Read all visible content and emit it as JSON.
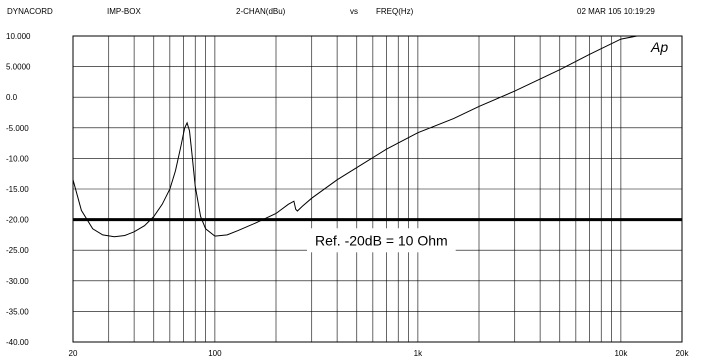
{
  "header": {
    "brand": "DYNACORD",
    "device": "IMP-BOX",
    "channel": "2-CHAN(dBu)",
    "vs": "vs",
    "freq": "FREQ(Hz)",
    "timestamp": "02 MAR 105 10:19:29"
  },
  "chart_data": {
    "type": "line",
    "xscale": "log",
    "xlim": [
      20,
      20000
    ],
    "ylim": [
      -40,
      10
    ],
    "grid": true,
    "ytick_labels": [
      "10.000",
      "5.0000",
      "0.0",
      "-5.000",
      "-10.00",
      "-15.00",
      "-20.00",
      "-25.00",
      "-30.00",
      "-35.00",
      "-40.00"
    ],
    "ytick_values": [
      10,
      5,
      0,
      -5,
      -10,
      -15,
      -20,
      -25,
      -30,
      -35,
      -40
    ],
    "xtick_labels": [
      "20",
      "100",
      "1k",
      "10k",
      "20k"
    ],
    "xtick_values": [
      20,
      100,
      1000,
      10000,
      20000
    ],
    "corner_label": "Ap",
    "reference_line": {
      "y": -20,
      "label": "Ref. -20dB = 10 Ohm"
    },
    "series": [
      {
        "x": [
          20,
          22,
          25,
          28,
          32,
          36,
          40,
          45,
          50,
          55,
          60,
          64,
          68,
          71,
          73,
          75,
          77,
          80,
          85,
          90,
          100,
          115,
          130,
          160,
          200,
          230,
          245,
          250,
          255,
          270,
          300,
          400,
          500,
          700,
          1000,
          1500,
          2000,
          3000,
          5000,
          7000,
          10000,
          12000
        ],
        "y": [
          -13.5,
          -18.5,
          -21.5,
          -22.5,
          -22.8,
          -22.6,
          -22.0,
          -21.0,
          -19.5,
          -17.5,
          -15.0,
          -12.0,
          -8.0,
          -5.0,
          -4.2,
          -5.5,
          -9.0,
          -14.5,
          -19.5,
          -21.5,
          -22.7,
          -22.5,
          -21.8,
          -20.5,
          -19.0,
          -17.5,
          -17.0,
          -18.3,
          -18.6,
          -17.8,
          -16.5,
          -13.5,
          -11.5,
          -8.5,
          -5.8,
          -3.5,
          -1.5,
          1.0,
          4.5,
          7.0,
          9.5,
          10.0
        ]
      }
    ]
  }
}
